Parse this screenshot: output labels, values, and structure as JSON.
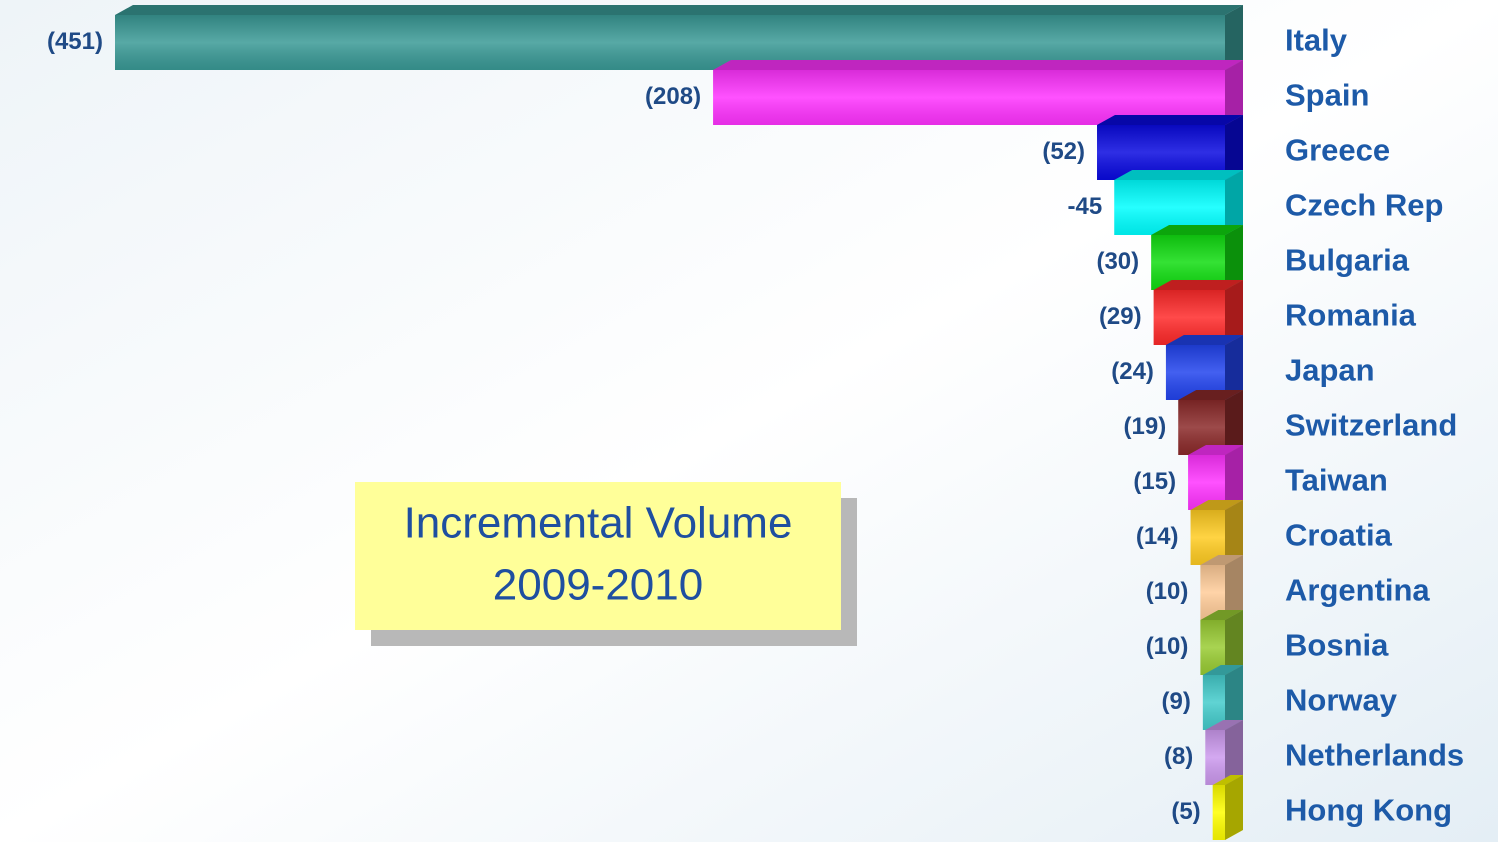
{
  "chart_data": {
    "type": "bar",
    "orientation": "horizontal",
    "annotation": [
      "Incremental Volume",
      "2009-2010"
    ],
    "categories": [
      "Italy",
      "Spain",
      "Greece",
      "Czech Rep",
      "Bulgaria",
      "Romania",
      "Japan",
      "Switzerland",
      "Taiwan",
      "Croatia",
      "Argentina",
      "Bosnia",
      "Norway",
      "Netherlands",
      "Hong Kong"
    ],
    "values": [
      -451,
      -208,
      -52,
      -45,
      -30,
      -29,
      -24,
      -19,
      -15,
      -14,
      -10,
      -10,
      -9,
      -8,
      -5
    ],
    "value_labels": [
      "(451)",
      "(208)",
      "(52)",
      "-45",
      "(30)",
      "(29)",
      "(24)",
      "(19)",
      "(15)",
      "(14)",
      "(10)",
      "(10)",
      "(9)",
      "(8)",
      "(5)"
    ],
    "colors": [
      "#3a9a96",
      "#ff33ff",
      "#0a0ae0",
      "#00ffff",
      "#11dd11",
      "#ff2a2a",
      "#2244ee",
      "#8b2a2a",
      "#ff33ff",
      "#ffcc22",
      "#ffcc99",
      "#99cc33",
      "#44cccc",
      "#cc99ee",
      "#ffff00"
    ],
    "xlim": [
      -451,
      0
    ]
  }
}
